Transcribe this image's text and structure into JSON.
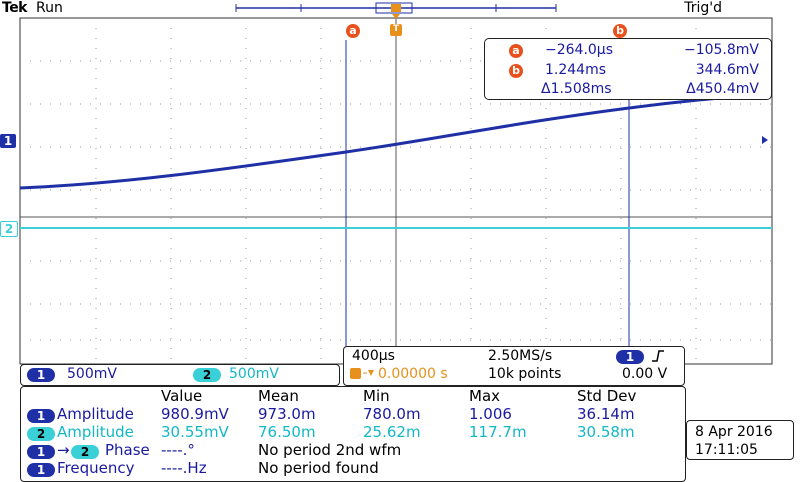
{
  "header": {
    "brand": "Tek",
    "state": "Run",
    "trigger_status": "Trig'd"
  },
  "cursor_markers": {
    "a": "a",
    "b": "b",
    "t": "T"
  },
  "cursor_readout": {
    "rows": [
      {
        "marker": "a",
        "time": "−264.0µs",
        "volt": "−105.8mV"
      },
      {
        "marker": "b",
        "time": "1.244ms",
        "volt": "344.6mV"
      },
      {
        "marker": "",
        "time": "Δ1.508ms",
        "volt": "Δ450.4mV"
      }
    ]
  },
  "channels": [
    {
      "num": "1",
      "scale": "500mV",
      "color": "#1f2fa6"
    },
    {
      "num": "2",
      "scale": "500mV",
      "color": "#39d0d8"
    }
  ],
  "timebase": {
    "time_div": "400µs",
    "sample_rate": "2.50MS/s",
    "trigger_delay": "0.00000 s",
    "record_length": "10k points",
    "trigger_channel": "1",
    "trigger_slope_icon": "rising-edge-icon",
    "trigger_level": "0.00 V"
  },
  "measurements": {
    "headers": [
      "Value",
      "Mean",
      "Min",
      "Max",
      "Std Dev"
    ],
    "rows": [
      {
        "ch": "1",
        "label": "Amplitude",
        "value": "980.9mV",
        "mean": "973.0m",
        "min": "780.0m",
        "max": "1.006",
        "std": "36.14m"
      },
      {
        "ch": "2",
        "label": "Amplitude",
        "value": "30.55mV",
        "mean": "76.50m",
        "min": "25.62m",
        "max": "117.7m",
        "std": "30.58m"
      },
      {
        "ch": "1",
        "ch2": "2",
        "label": "Phase",
        "value": "----.°",
        "note": "No period 2nd wfm"
      },
      {
        "ch": "1",
        "label": "Frequency",
        "value": "----.Hz",
        "note": "No period found"
      }
    ]
  },
  "datetime": {
    "date": "8 Apr  2016",
    "time": "17:11:05"
  },
  "colors": {
    "ch1": "#1f2fa6",
    "ch2": "#39d0d8",
    "cursor": "#e8501c",
    "trigger": "#e8901c"
  }
}
